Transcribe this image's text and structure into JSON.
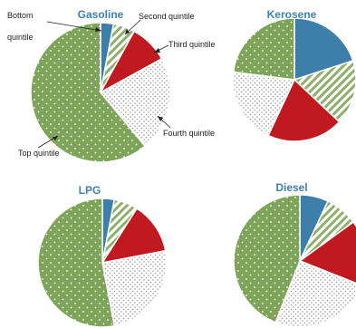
{
  "chart_data": [
    {
      "type": "pie",
      "title": "Gasoline",
      "categories": [
        "Bottom quintile",
        "Second quintile",
        "Third quintile",
        "Fourth quintile",
        "Top quintile"
      ],
      "values": [
        3,
        5,
        9,
        22,
        61
      ]
    },
    {
      "type": "pie",
      "title": "Kerosene",
      "categories": [
        "Bottom quintile",
        "Second quintile",
        "Third quintile",
        "Fourth quintile",
        "Top quintile"
      ],
      "values": [
        20,
        17,
        20,
        20,
        23
      ]
    },
    {
      "type": "pie",
      "title": "LPG",
      "categories": [
        "Bottom quintile",
        "Second quintile",
        "Third quintile",
        "Fourth quintile",
        "Top quintile"
      ],
      "values": [
        3,
        6,
        13,
        25,
        53
      ]
    },
    {
      "type": "pie",
      "title": "Diesel",
      "categories": [
        "Bottom quintile",
        "Second quintile",
        "Third quintile",
        "Fourth quintile",
        "Top quintile"
      ],
      "values": [
        7,
        8,
        16,
        25,
        44
      ]
    }
  ],
  "colors": {
    "bottom": "#3d7eaa",
    "second": "#8fb06a",
    "third": "#c0191f",
    "fourth": "#d9d9d9",
    "top": "#7ea45a",
    "title": "#3c82b8"
  },
  "callouts": {
    "bottom": "Bottom\nquintile",
    "second": "Second quintile",
    "third": "Third quintile",
    "fourth": "Fourth quintile",
    "top": "Top quintile"
  }
}
